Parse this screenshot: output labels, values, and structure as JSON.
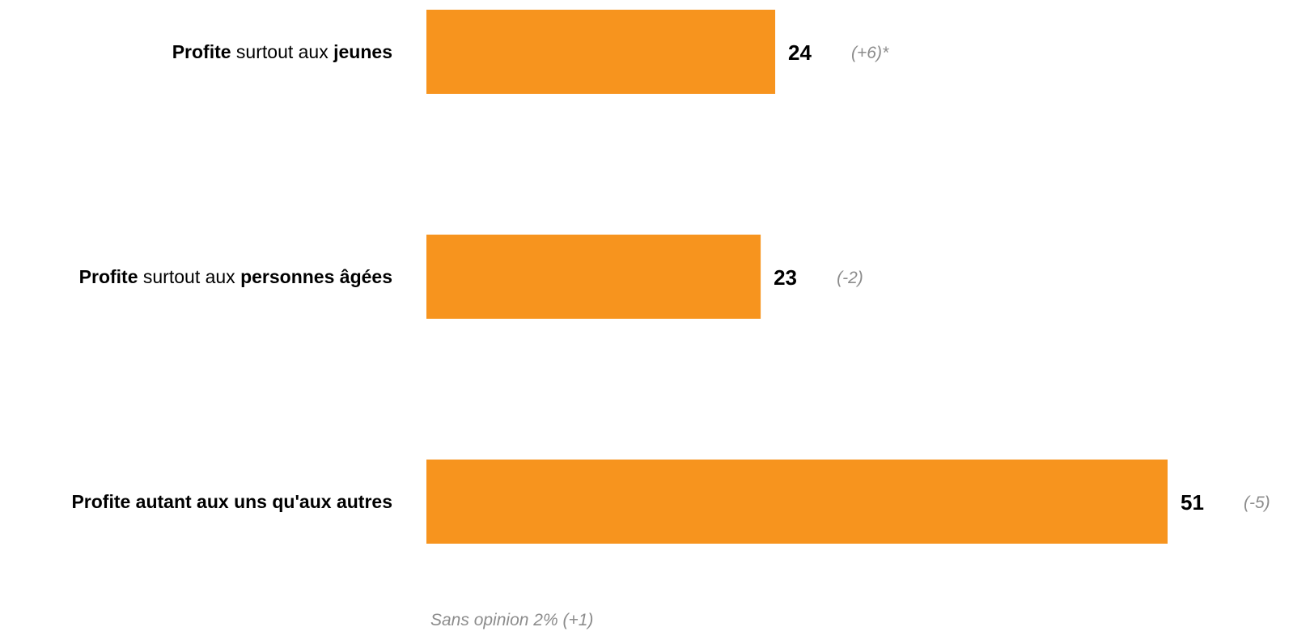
{
  "chart_data": {
    "type": "bar",
    "orientation": "horizontal",
    "bar_color": "#F7941E",
    "categories": [
      [
        {
          "text": "Profite",
          "bold": true
        },
        {
          "text": " surtout aux ",
          "bold": false
        },
        {
          "text": "jeunes",
          "bold": true
        }
      ],
      [
        {
          "text": "Profite",
          "bold": true
        },
        {
          "text": " surtout aux ",
          "bold": false
        },
        {
          "text": "personnes âgées",
          "bold": true
        }
      ],
      [
        {
          "text": "Profite autant aux uns qu'aux autres",
          "bold": true
        }
      ]
    ],
    "values": [
      24,
      23,
      51
    ],
    "value_labels": [
      "24",
      "23",
      "51"
    ],
    "changes": [
      "(+6)*",
      "(-2)",
      "(-5)"
    ],
    "xlim": [
      0,
      51
    ]
  },
  "footnote": "Sans opinion 2% (+1)"
}
